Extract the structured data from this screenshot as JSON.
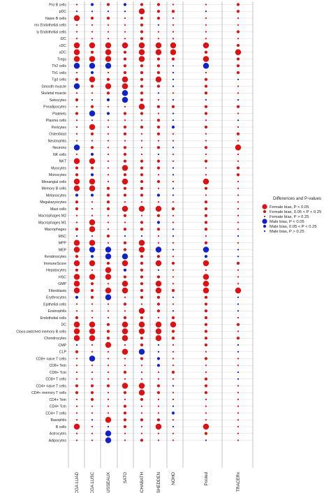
{
  "chart_data": {
    "type": "scatter",
    "title": "",
    "xlabel": "",
    "ylabel": "",
    "columns": [
      "TCGA LUAD",
      "TCGA LUSC",
      "ROUSSEAUX",
      "SATO",
      "SCHABATH",
      "SHEDDEN",
      "NOHO",
      "Pooled",
      "TRACERx"
    ],
    "rows": [
      "Pro B cells",
      "pDC",
      "Naive B cells",
      "mv Endothelial cells",
      "ly Endothelial cells",
      "iDC",
      "cDC",
      "aDC",
      "Tregs",
      "Th2 cells",
      "Th1 cells",
      "Tgd cells",
      "Smooth muscle",
      "Skeletal muscle",
      "Sebocytes",
      "Preadipocytes",
      "Platelets",
      "Plasma cells",
      "Pericytes",
      "Osteoblast",
      "Neutrophils",
      "Neurons",
      "NK cells",
      "NKT",
      "Myocytes",
      "Monocytes",
      "Mesangial cells",
      "Memory B cells",
      "Melanocytes",
      "Megakaryocytes",
      "Mast cells",
      "Macrophages M2",
      "Macrophages M1",
      "Macrophages",
      "MSC",
      "MPP",
      "MEP",
      "Keratinocytes",
      "ImmuneScore",
      "Hepatocytes",
      "HSC",
      "GMP",
      "Fibroblasts",
      "Erythrocytes",
      "Epithelial cells",
      "Eosinophils",
      "Endothelial cells",
      "DC",
      "Class-switched memory B cells",
      "Chondrocytes",
      "CMP",
      "CLP",
      "CD8+ naive T cells",
      "CD8+ Tem",
      "CD8+ Tcm",
      "CD8+ T cells",
      "CD4+ naive T cells",
      "CD4+ memory T cells",
      "CD4+ Tem",
      "CD4+ Tcm",
      "CD4+ T cells",
      "Basophils",
      "B cells",
      "Astrocytes",
      "Adipocytes"
    ],
    "category_codes": {
      "F": "Female bias, P < 0.05",
      "f": "Female bias, 0.05 < P < 0.25",
      "x": "Female bias, P > 0.25",
      "M": "Male bias, P < 0.05",
      "m": "Male bias, 0.05 < P < 0.25",
      "y": "Male bias, P > 0.25"
    },
    "values": [
      "xmfmffxxf",
      "yyyyFffyf",
      "Fffxffxxx",
      "xxxxfyxxx",
      "xxxxfxxxf",
      "xxxxfxxxx",
      "FFFFFFFFf",
      "FfFfFFFfF",
      "FFFfFffFf",
      "MMMfffyMf",
      "xmxfffyxf",
      "fFfFfFyfy",
      "MfFFffyfx",
      "xxfMfyxfx",
      "fymMfxyyy",
      "xfxxFffff",
      "fMmffxyfx",
      "xxxxxfyxy",
      "xFxfffmfx",
      "xfxfxfxxf",
      "xxxxxxxxx",
      "MfxfxfyfF",
      "xmxfxyxxx",
      "FFxfffxfx",
      "ffxFffyxf",
      "fmxffxyxf",
      "FFxFffxFx",
      "FFfffxyfx",
      "mmfffmyxx",
      "fxfxxxxfx",
      "fxfFFFffx",
      "xxxfxfxfx",
      "xFxxfmxfx",
      "fFxfffyfx",
      "yxfyyxyxy",
      "FFxfFxxfx",
      "FMMfFMyMy",
      "fmMMffxmy",
      "FFfFfFfFf",
      "fxFmfyxxx",
      "FFFfffxFx",
      "FfxFfFxFx",
      "FfFFfFfFF",
      "mfMxffyfy",
      "xxxfxfxfy",
      "xxxxFfyfy",
      "fxxffxffx",
      "FFfFFFFff",
      "FFfFFFffx",
      "FFfFfFfff",
      "yxFxfyxfy",
      "fxxFMyxxy",
      "xMxxfmxfx",
      "xxxxxmxxx",
      "xxxfxxfxy",
      "xxxxxxxfy",
      "fffFFfyfx",
      "ffxfFfxfx",
      "xfxxfxxxx",
      "xxxfxxyxx",
      "xxxfxxmxx",
      "xyFfffxxx",
      "FxyfxFyFx",
      "xxMxxxxfx",
      "xxMxfxxyx"
    ]
  },
  "legend": {
    "title": "Differences and P-values",
    "items": [
      {
        "code": "F",
        "label": "Female bias, P < 0.05"
      },
      {
        "code": "f",
        "label": "Female bias, 0.05 < P < 0.25"
      },
      {
        "code": "x",
        "label": "Female bias, P > 0.25"
      },
      {
        "code": "M",
        "label": "Male bias, P < 0.05"
      },
      {
        "code": "m",
        "label": "Male bias, 0.05 < P < 0.25"
      },
      {
        "code": "y",
        "label": "Male bias, P > 0.25"
      }
    ]
  },
  "colors": {
    "female": "#dd1111",
    "male": "#1122cc",
    "grid": "#d9d9d9",
    "separator": "#9a9a9a"
  }
}
